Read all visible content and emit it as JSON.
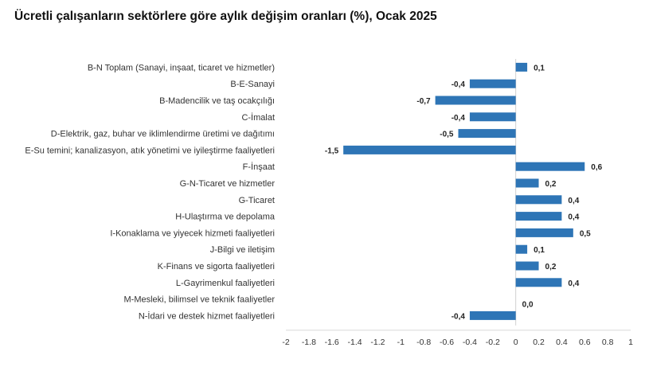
{
  "chart_data": {
    "type": "bar",
    "orientation": "horizontal",
    "title": "Ücretli çalışanların sektörlere göre aylık değişim oranları (%), Ocak 2025",
    "categories": [
      "B-N Toplam (Sanayi, inşaat, ticaret ve hizmetler)",
      "B-E-Sanayi",
      "B-Madencilik ve taş ocakçılığı",
      "C-İmalat",
      "D-Elektrik, gaz, buhar ve iklimlendirme üretimi ve dağıtımı",
      "E-Su temini; kanalizasyon, atık yönetimi ve iyileştirme faaliyetleri",
      "F-İnşaat",
      "G-N-Ticaret ve hizmetler",
      "G-Ticaret",
      "H-Ulaştırma ve depolama",
      "I-Konaklama ve yiyecek hizmeti faaliyetleri",
      "J-Bilgi ve iletişim",
      "K-Finans ve sigorta faaliyetleri",
      "L-Gayrimenkul faaliyetleri",
      "M-Mesleki, bilimsel ve teknik faaliyetler",
      "N-İdari ve destek hizmet faaliyetleri"
    ],
    "values": [
      0.1,
      -0.4,
      -0.7,
      -0.4,
      -0.5,
      -1.5,
      0.6,
      0.2,
      0.4,
      0.4,
      0.5,
      0.1,
      0.2,
      0.4,
      0.0,
      -0.4
    ],
    "value_labels": [
      "0,1",
      "-0,4",
      "-0,7",
      "-0,4",
      "-0,5",
      "-1,5",
      "0,6",
      "0,2",
      "0,4",
      "0,4",
      "0,5",
      "0,1",
      "0,2",
      "0,4",
      "0,0",
      "-0,4"
    ],
    "xlim": [
      -2,
      1
    ],
    "x_ticks": [
      -2,
      -1.8,
      -1.6,
      -1.4,
      -1.2,
      -1,
      -0.8,
      -0.6,
      -0.4,
      -0.2,
      0,
      0.2,
      0.4,
      0.6,
      0.8,
      1
    ],
    "x_tick_labels": [
      "-2",
      "-1.8",
      "-1.6",
      "-1.4",
      "-1.2",
      "-1",
      "-0.8",
      "-0.6",
      "-0.4",
      "-0.2",
      "0",
      "0.2",
      "0.4",
      "0.6",
      "0.8",
      "1"
    ],
    "grid": false,
    "legend": "none",
    "bar_color": "#2E75B6",
    "xlabel": "",
    "ylabel": ""
  }
}
